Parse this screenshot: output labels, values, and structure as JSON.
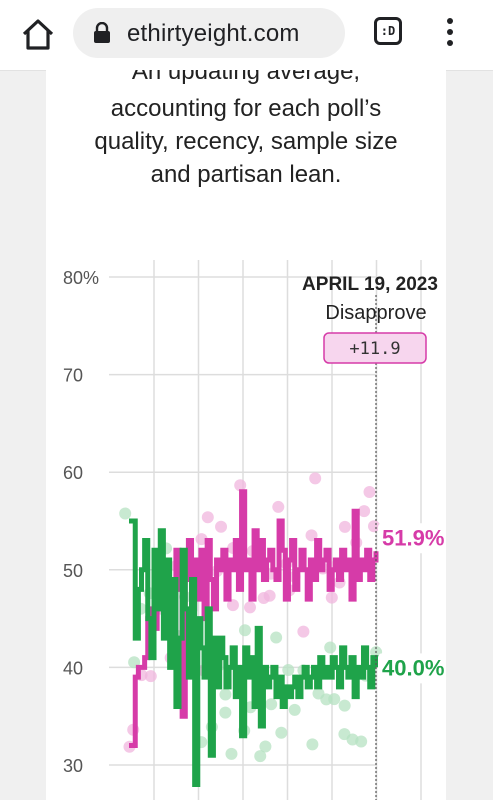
{
  "browser": {
    "url": "ethirtyeight.com",
    "tab_switcher_label": ":D"
  },
  "subtitle": {
    "lines": [
      "An updating average,",
      "accounting for each poll’s",
      "quality, recency, sample size",
      "and partisan lean."
    ]
  },
  "chart_data": {
    "type": "line",
    "yticks": [
      "80%",
      "70",
      "60",
      "50",
      "40",
      "30"
    ],
    "ylim": [
      30,
      80
    ],
    "grid": true,
    "hover": {
      "date": "APRIL 19, 2023",
      "series": "Disapprove",
      "margin": "+11.9"
    },
    "end_labels": {
      "disapprove": "51.9%",
      "approve": "40.0%"
    },
    "colors": {
      "disapprove": "#d63ba8",
      "approve": "#1fa34a",
      "disapprove_dot": "#f0b6de",
      "approve_dot": "#b5e2c2"
    },
    "x": [
      0,
      1,
      2,
      3,
      4,
      5,
      6,
      7,
      8,
      9,
      10,
      11,
      12,
      13,
      14,
      15,
      16,
      17,
      18,
      19,
      20,
      21,
      22,
      23,
      24,
      25,
      26,
      27,
      28,
      29,
      30,
      31,
      32,
      33,
      34,
      35,
      36,
      37,
      38,
      39,
      40,
      41,
      42,
      43,
      44,
      45,
      46,
      47,
      48,
      49,
      50,
      51,
      52,
      53,
      54,
      55,
      56,
      57,
      58,
      59,
      60,
      61,
      62,
      63,
      64,
      65,
      66,
      67,
      68,
      69,
      70,
      71,
      72,
      73,
      74,
      75,
      76,
      77,
      78,
      79
    ],
    "series": [
      {
        "name": "Disapprove",
        "values": [
          32,
          32,
          39,
          40,
          40,
          41,
          45,
          46,
          44,
          46,
          49,
          51,
          45,
          47,
          41,
          52,
          48,
          35,
          49,
          53,
          46,
          51,
          47,
          52,
          45,
          53,
          49,
          46,
          51,
          50,
          52,
          47,
          51,
          50,
          53,
          48,
          58,
          50,
          51,
          47,
          54,
          50,
          53,
          49,
          51,
          52,
          50,
          49,
          55,
          52,
          47,
          51,
          53,
          48,
          50,
          52,
          50,
          47,
          51,
          49,
          53,
          50,
          51,
          52,
          48,
          50,
          51,
          49,
          52,
          50,
          51,
          47,
          56,
          49,
          51,
          50,
          52,
          49,
          51,
          51.9
        ]
      },
      {
        "name": "Approve",
        "values": [
          55,
          55,
          43,
          48,
          50,
          53,
          45,
          41,
          52,
          46,
          54,
          43,
          51,
          40,
          49,
          36,
          43,
          52,
          46,
          39,
          49,
          28,
          45,
          42,
          39,
          46,
          31,
          43,
          38,
          43,
          41,
          38,
          40,
          42,
          37,
          40,
          33,
          42,
          39,
          41,
          36,
          44,
          34,
          40,
          38,
          39,
          40,
          37,
          39,
          36,
          38,
          37,
          38,
          39,
          37,
          39,
          40,
          38,
          39,
          40,
          38,
          41,
          39,
          40,
          39,
          41,
          40,
          38,
          42,
          40,
          39,
          41,
          37,
          40,
          39,
          42,
          40,
          38,
          41,
          40.0
        ]
      }
    ]
  }
}
